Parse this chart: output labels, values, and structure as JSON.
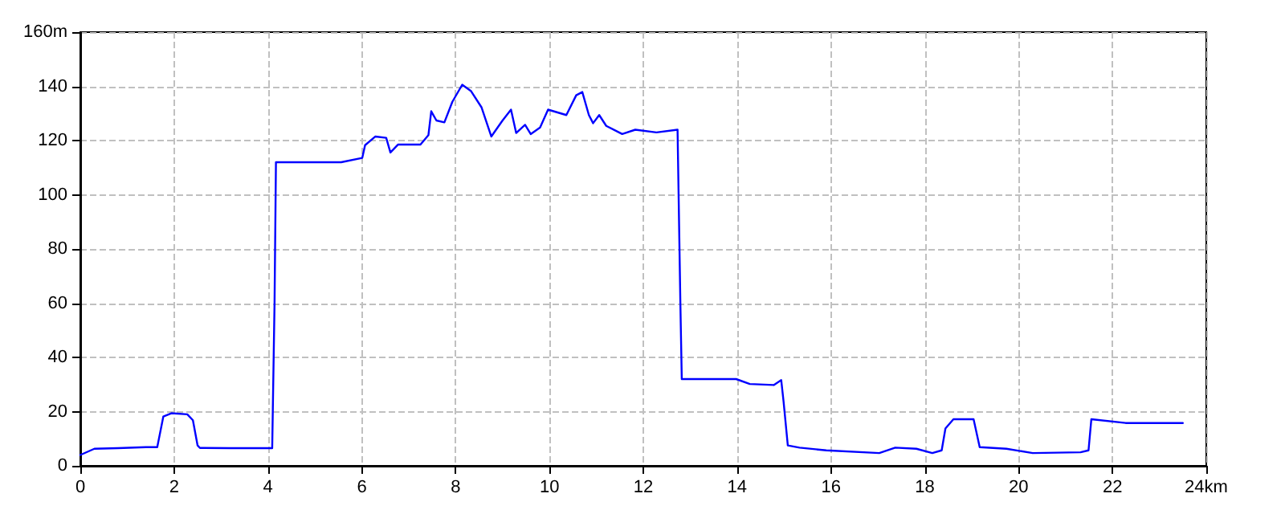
{
  "chart_data": {
    "type": "line",
    "x": [
      0,
      0.3,
      0.8,
      1.4,
      1.64,
      1.77,
      1.94,
      2.28,
      2.4,
      2.5,
      2.55,
      3.2,
      4.09,
      4.14,
      4.17,
      5.56,
      6.01,
      6.07,
      6.29,
      6.52,
      6.61,
      6.77,
      7.25,
      7.42,
      7.48,
      7.59,
      7.76,
      7.93,
      8.14,
      8.33,
      8.55,
      8.76,
      9.0,
      9.18,
      9.29,
      9.48,
      9.6,
      9.8,
      9.97,
      10.36,
      10.57,
      10.7,
      10.84,
      10.93,
      11.06,
      11.21,
      11.55,
      11.83,
      12.28,
      12.73,
      12.79,
      12.82,
      13.5,
      13.98,
      14.27,
      14.78,
      14.94,
      14.99,
      15.08,
      15.33,
      15.9,
      17.03,
      17.37,
      17.82,
      18.16,
      18.36,
      18.44,
      18.61,
      19.04,
      19.17,
      19.74,
      20.3,
      21.32,
      21.49,
      21.55,
      22.28,
      23.5
    ],
    "series": [
      {
        "color": "#0000ff",
        "values": [
          4,
          6.3,
          6.5,
          6.9,
          6.9,
          18.2,
          19.4,
          19,
          16.8,
          7.5,
          6.6,
          6.5,
          6.5,
          60,
          112,
          112,
          113.6,
          118.3,
          121.5,
          121,
          115.6,
          118.5,
          118.5,
          122,
          130.8,
          127.4,
          126.7,
          134.3,
          140.6,
          138.2,
          132.3,
          121.5,
          127.4,
          131.4,
          122.8,
          125.8,
          122.4,
          124.8,
          131.4,
          129.4,
          136.7,
          137.9,
          129.4,
          126.4,
          129.4,
          125.4,
          122.4,
          124,
          123,
          124,
          60,
          32,
          32,
          32,
          30.2,
          29.8,
          31.6,
          23.7,
          7.5,
          6.7,
          5.7,
          4.7,
          6.7,
          6.3,
          4.7,
          5.7,
          13.8,
          17.2,
          17.2,
          6.9,
          6.3,
          4.7,
          5,
          5.7,
          17.2,
          15.8,
          15.8
        ]
      }
    ],
    "xlim": [
      0,
      24
    ],
    "xticks": [
      0,
      2,
      4,
      6,
      8,
      10,
      12,
      14,
      16,
      18,
      20,
      22,
      {
        "value": 24,
        "label": "24km"
      }
    ],
    "ylim": [
      0,
      160
    ],
    "yticks": [
      0,
      20,
      40,
      60,
      80,
      100,
      120,
      140,
      {
        "value": 160,
        "label": "160m"
      }
    ],
    "grid": true,
    "marker": "none",
    "line_style": "solid"
  }
}
